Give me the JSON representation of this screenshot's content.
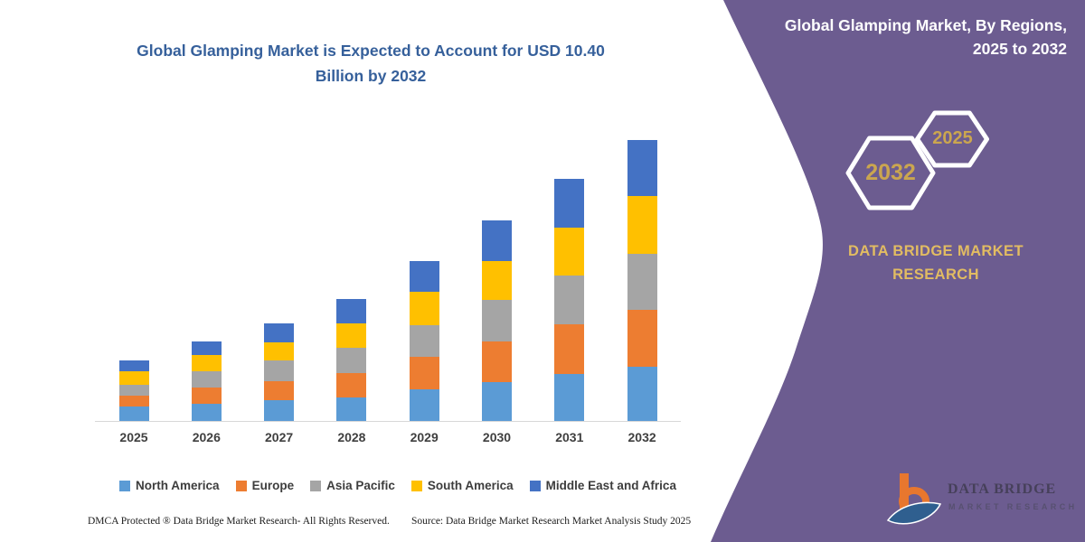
{
  "main_title": {
    "line1": "Global Glamping Market is Expected to Account for USD 10.40",
    "line2": "Billion by 2032"
  },
  "chart_data": {
    "type": "bar",
    "stacked": true,
    "title": "Global Glamping Market is Expected to Account for USD 10.40 Billion by 2032",
    "unit": "USD Billion",
    "categories": [
      "2025",
      "2026",
      "2027",
      "2028",
      "2029",
      "2030",
      "2031",
      "2032"
    ],
    "series": [
      {
        "name": "North America",
        "color": "#5B9BD5",
        "values": [
          0.53,
          0.63,
          0.78,
          0.88,
          1.17,
          1.45,
          1.73,
          2.01
        ]
      },
      {
        "name": "Europe",
        "color": "#ED7D31",
        "values": [
          0.41,
          0.6,
          0.7,
          0.91,
          1.2,
          1.5,
          1.84,
          2.12
        ]
      },
      {
        "name": "Asia Pacific",
        "color": "#A5A5A5",
        "values": [
          0.41,
          0.61,
          0.75,
          0.93,
          1.19,
          1.53,
          1.82,
          2.06
        ]
      },
      {
        "name": "South America",
        "color": "#FFC000",
        "values": [
          0.48,
          0.59,
          0.67,
          0.9,
          1.22,
          1.45,
          1.77,
          2.14
        ]
      },
      {
        "name": "Middle East and Africa",
        "color": "#4472C4",
        "values": [
          0.41,
          0.5,
          0.72,
          0.89,
          1.14,
          1.48,
          1.79,
          2.07
        ]
      }
    ],
    "totals": [
      2.24,
      2.93,
      3.62,
      4.51,
      5.92,
      7.41,
      8.95,
      10.4
    ],
    "ylim": [
      0,
      10.6
    ],
    "y_axis_visible": false,
    "grid": false,
    "legend_position": "bottom"
  },
  "panel": {
    "heading_line1": "Global Glamping Market, By Regions,",
    "heading_line2": "2025 to 2032",
    "hexagons": {
      "large_year": "2032",
      "small_year": "2025"
    },
    "brand_line1": "DATA BRIDGE MARKET",
    "brand_line2": "RESEARCH",
    "logo_primary": "DATA BRIDGE",
    "logo_secondary": "MARKET RESEARCH"
  },
  "footer": {
    "dmca": "DMCA Protected ® Data Bridge Market Research-  All Rights Reserved.",
    "source": "Source: Data Bridge Market Research  Market Analysis Study 2025"
  },
  "colors": {
    "title_blue": "#36609B",
    "panel_purple": "#6C5C90",
    "gold_text": "#E2BC62",
    "hex_year_gold": "#CBA64F",
    "axis_gray": "#D8D8D8",
    "label_gray": "#3F3F3F",
    "logo_orange": "#E8772E",
    "logo_blue": "#2F5F8F"
  }
}
